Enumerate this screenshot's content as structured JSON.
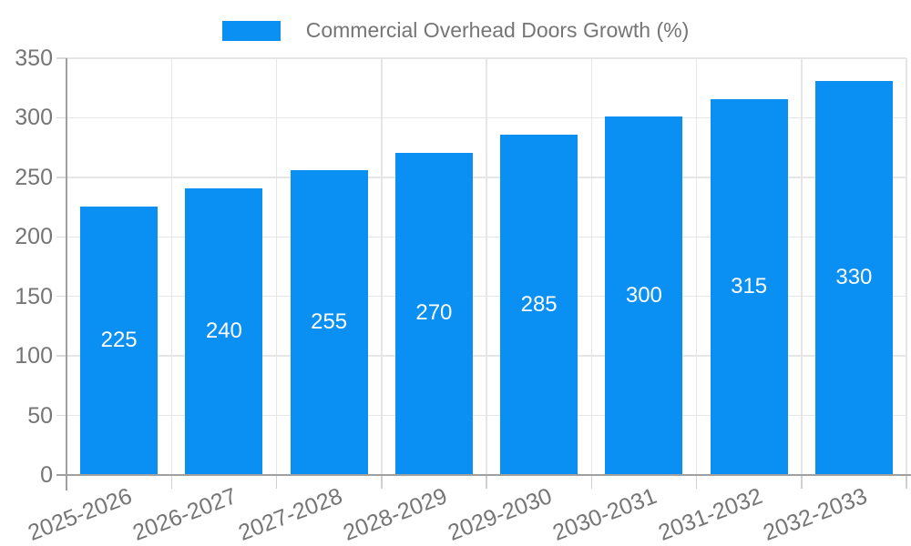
{
  "legend": {
    "label": "Commercial Overhead Doors Growth (%)"
  },
  "chart_data": {
    "type": "bar",
    "title": "Commercial Overhead Doors Growth (%)",
    "categories": [
      "2025-2026",
      "2026-2027",
      "2027-2028",
      "2028-2029",
      "2029-2030",
      "2030-2031",
      "2031-2032",
      "2032-2033"
    ],
    "series": [
      {
        "name": "Commercial Overhead Doors Growth (%)",
        "values": [
          225,
          240,
          255,
          270,
          285,
          300,
          315,
          330
        ]
      }
    ],
    "bar_labels": [
      "225",
      "240",
      "255",
      "270",
      "285",
      "300",
      "315",
      "330"
    ],
    "xlabel": "",
    "ylabel": "",
    "ylim": [
      0,
      350
    ],
    "yticks": [
      0,
      50,
      100,
      150,
      200,
      250,
      300,
      350
    ],
    "grid": true,
    "legend_position": "top-center",
    "colors": {
      "bar": "#0a8ff2",
      "bar_label": "#ffffff",
      "axis_text": "#757575",
      "axis_line": "#a0a0a0",
      "gridline": "#e6e6e6",
      "y_tick": "#d9d9d9",
      "x_tick": "#d0d0d0",
      "background": "#ffffff"
    }
  }
}
